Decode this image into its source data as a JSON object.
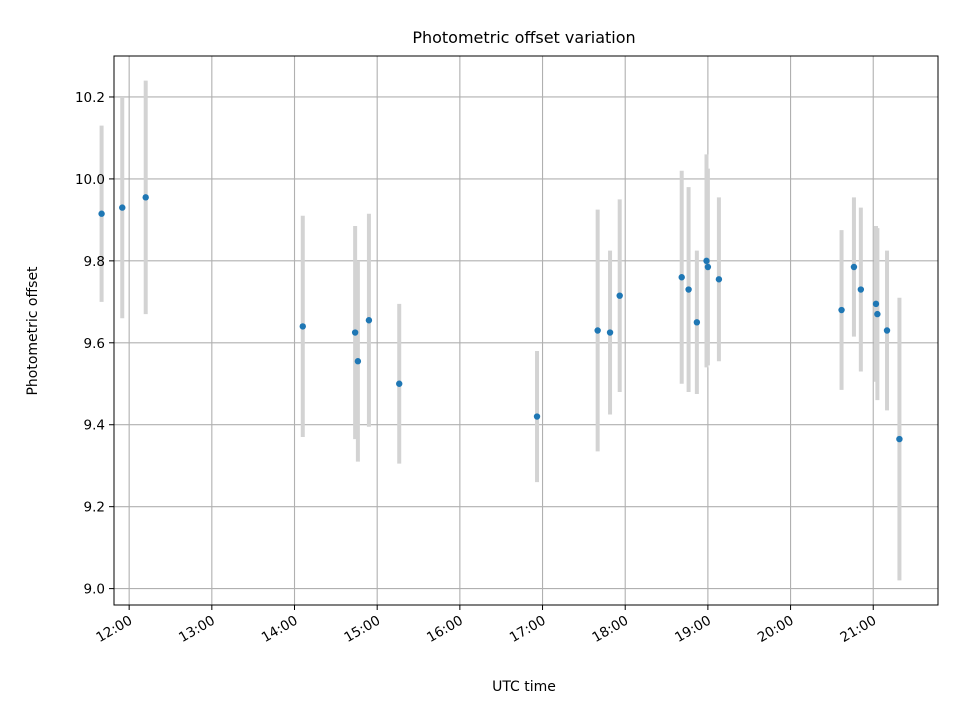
{
  "chart_data": {
    "type": "scatter",
    "title": "Photometric offset variation",
    "xlabel": "UTC time",
    "ylabel": "Photometric offset",
    "x_ticks": [
      "12:00",
      "13:00",
      "14:00",
      "15:00",
      "16:00",
      "17:00",
      "18:00",
      "19:00",
      "20:00",
      "21:00"
    ],
    "y_ticks": [
      "9.0",
      "9.2",
      "9.4",
      "9.6",
      "9.8",
      "10.0",
      "10.2"
    ],
    "xlim": [
      "11:49",
      "21:47"
    ],
    "ylim": [
      8.96,
      10.3
    ],
    "grid": true,
    "colors": {
      "points": "#1f77b4",
      "errorbars": "#d3d3d3",
      "grid": "#b0b0b0"
    },
    "series": [
      {
        "x": [
          "11:40",
          "11:55",
          "12:12",
          "14:06",
          "14:44",
          "14:46",
          "14:54",
          "15:16",
          "16:56",
          "17:40",
          "17:49",
          "17:56",
          "18:41",
          "18:46",
          "18:52",
          "18:59",
          "19:00",
          "19:08",
          "20:37",
          "20:46",
          "20:51",
          "21:02",
          "21:03",
          "21:10",
          "21:19"
        ],
        "y": [
          9.915,
          9.93,
          9.955,
          9.64,
          9.625,
          9.555,
          9.655,
          9.5,
          9.42,
          9.63,
          9.625,
          9.715,
          9.76,
          9.73,
          9.65,
          9.8,
          9.785,
          9.755,
          9.68,
          9.785,
          9.73,
          9.695,
          9.67,
          9.63,
          9.365
        ],
        "yerr": [
          0.215,
          0.27,
          0.285,
          0.27,
          0.26,
          0.245,
          0.26,
          0.195,
          0.16,
          0.295,
          0.2,
          0.235,
          0.26,
          0.25,
          0.175,
          0.26,
          0.24,
          0.2,
          0.195,
          0.17,
          0.2,
          0.19,
          0.21,
          0.195,
          0.345
        ]
      }
    ]
  }
}
